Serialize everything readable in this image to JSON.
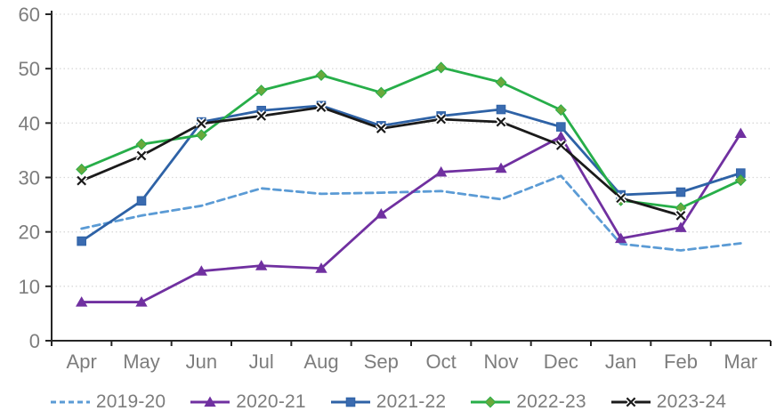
{
  "chart_data": {
    "type": "line",
    "title": "",
    "xlabel": "",
    "ylabel": "",
    "categories": [
      "Apr",
      "May",
      "Jun",
      "Jul",
      "Aug",
      "Sep",
      "Oct",
      "Nov",
      "Dec",
      "Jan",
      "Feb",
      "Mar"
    ],
    "series": [
      {
        "name": "2019-20",
        "color": "#5B9BD5",
        "line_style": "dashed",
        "marker": "none",
        "values": [
          20.6,
          23.0,
          24.8,
          28.0,
          27.0,
          27.2,
          27.5,
          26.0,
          30.3,
          17.8,
          16.6,
          17.9
        ]
      },
      {
        "name": "2020-21",
        "color": "#7030A0",
        "line_style": "solid",
        "marker": "triangle",
        "marker_fill": "#7030A0",
        "values": [
          7.1,
          7.1,
          12.8,
          13.8,
          13.3,
          23.3,
          31.0,
          31.7,
          37.5,
          18.8,
          20.8,
          38.1
        ]
      },
      {
        "name": "2021-22",
        "color": "#2E62A6",
        "line_style": "solid",
        "marker": "square",
        "marker_fill": "#3A6BB0",
        "values": [
          18.3,
          25.7,
          40.2,
          42.3,
          43.2,
          39.5,
          41.3,
          42.5,
          39.3,
          26.8,
          27.3,
          30.8
        ]
      },
      {
        "name": "2022-23",
        "color": "#27AE49",
        "line_style": "solid",
        "marker": "diamond",
        "marker_fill": "#69A93C",
        "values": [
          31.5,
          36.1,
          37.8,
          46.0,
          48.8,
          45.6,
          50.2,
          47.5,
          42.4,
          25.8,
          24.4,
          29.5
        ]
      },
      {
        "name": "2023-24",
        "color": "#1A1A1A",
        "line_style": "solid",
        "marker": "x",
        "marker_fill": "#ffffff",
        "values": [
          29.4,
          34.0,
          39.9,
          41.3,
          42.9,
          39.0,
          40.7,
          40.2,
          35.9,
          26.2,
          23.0,
          null
        ]
      }
    ],
    "ylim": [
      0,
      60
    ],
    "yticks": [
      0,
      10,
      20,
      30,
      40,
      50,
      60
    ],
    "grid": "horizontal-dotted",
    "legend_position": "bottom",
    "colors": {
      "axis_line": "#262626",
      "tick_label": "#7d7d7d",
      "gridline": "#d9d9d9",
      "background": "#ffffff"
    }
  }
}
